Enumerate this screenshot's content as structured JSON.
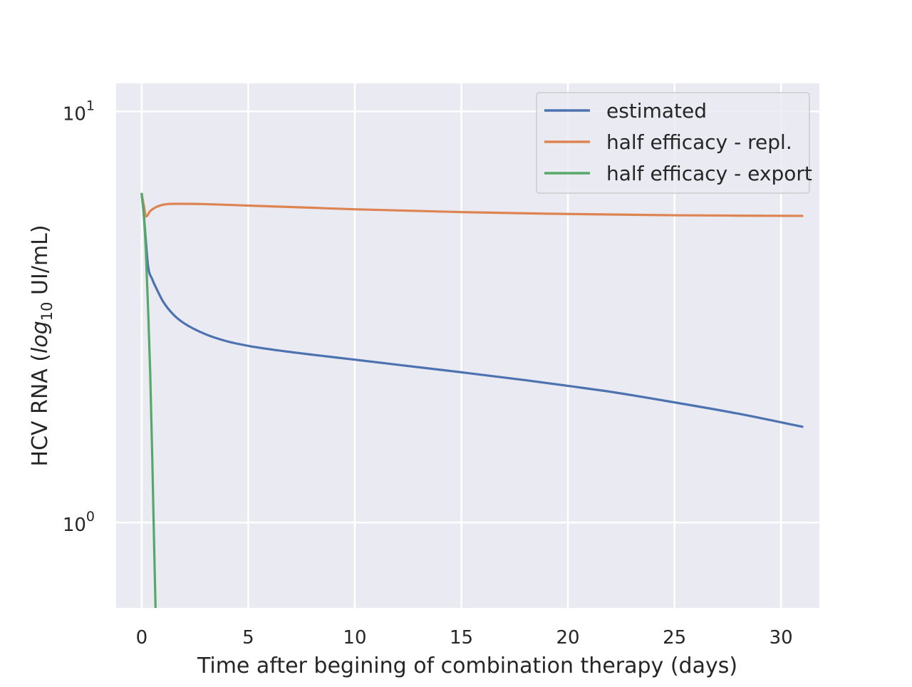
{
  "chart_data": {
    "type": "line",
    "xlabel": "Time after begining of combination therapy (days)",
    "ylabel": {
      "prefix": "HCV RNA (",
      "math": "log",
      "subscript": "10",
      "suffix": " UI/mL)"
    },
    "xscale": "linear",
    "yscale": "log",
    "xlim": [
      -1.2,
      31.8
    ],
    "ylim": [
      0.62,
      11.7
    ],
    "grid": true,
    "legend_position": "top-right",
    "x_ticks": [
      {
        "value": 0,
        "label": "0"
      },
      {
        "value": 5,
        "label": "5"
      },
      {
        "value": 10,
        "label": "10"
      },
      {
        "value": 15,
        "label": "15"
      },
      {
        "value": 20,
        "label": "20"
      },
      {
        "value": 25,
        "label": "25"
      },
      {
        "value": 30,
        "label": "30"
      }
    ],
    "y_ticks": [
      {
        "value": 1,
        "base": "10",
        "exponent": "0"
      },
      {
        "value": 10,
        "base": "10",
        "exponent": "1"
      }
    ],
    "series": [
      {
        "name": "estimated",
        "color": "#4c72b0",
        "x": [
          0,
          0.1,
          0.2,
          0.3,
          0.5,
          0.7,
          1,
          1.5,
          2,
          3,
          4,
          5,
          6,
          8,
          10,
          12,
          15,
          18,
          20,
          22,
          25,
          28,
          31
        ],
        "y": [
          6.3,
          5.6,
          4.8,
          4.2,
          3.9,
          3.7,
          3.45,
          3.2,
          3.05,
          2.87,
          2.76,
          2.69,
          2.64,
          2.56,
          2.49,
          2.42,
          2.32,
          2.22,
          2.15,
          2.08,
          1.96,
          1.84,
          1.71
        ]
      },
      {
        "name": "half efficacy - repl.",
        "color": "#dd8452",
        "x": [
          0,
          0.1,
          0.2,
          0.4,
          0.7,
          1,
          1.5,
          2,
          3,
          5,
          8,
          10,
          15,
          20,
          25,
          31
        ],
        "y": [
          6.3,
          5.9,
          5.55,
          5.72,
          5.86,
          5.93,
          5.96,
          5.96,
          5.95,
          5.9,
          5.83,
          5.78,
          5.69,
          5.63,
          5.59,
          5.57
        ]
      },
      {
        "name": "half efficacy - export",
        "color": "#55a868",
        "x": [
          0,
          0.1,
          0.2,
          0.3,
          0.4,
          0.5,
          0.6,
          0.65
        ],
        "y": [
          6.3,
          5.6,
          4.5,
          3.3,
          2.3,
          1.4,
          0.8,
          0.62
        ]
      }
    ]
  }
}
